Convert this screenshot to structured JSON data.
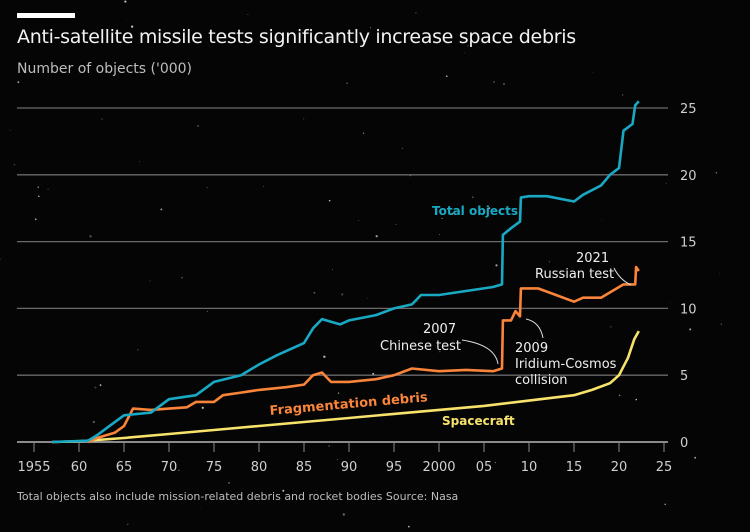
{
  "title": "Anti-satellite missile tests significantly increase space debris",
  "subtitle": "Number of objects ('000)",
  "footer": "Total objects also include mission-related debris and rocket bodies  Source: Nasa",
  "colors": {
    "total": "#19a9c4",
    "fragmentation": "#f9843a",
    "spacecraft": "#f7e36b",
    "grid": "#6a6a6a",
    "background": "#050505"
  },
  "chart_data": {
    "type": "line",
    "title": "Anti-satellite missile tests significantly increase space debris",
    "ylabel": "Number of objects ('000)",
    "xlim": [
      1954,
      2026
    ],
    "ylim": [
      0,
      25
    ],
    "grid": true,
    "x_ticks": [
      1955,
      1960,
      1965,
      1970,
      1975,
      1980,
      1985,
      1990,
      1995,
      2000,
      2005,
      2010,
      2015,
      2020,
      2025
    ],
    "x_tick_labels": [
      "1955",
      "60",
      "65",
      "70",
      "75",
      "80",
      "85",
      "90",
      "95",
      "2000",
      "05",
      "10",
      "15",
      "20",
      "25"
    ],
    "y_ticks": [
      0,
      5,
      10,
      15,
      20,
      25
    ],
    "y_tick_labels": [
      "0",
      "5",
      "10",
      "15",
      "20",
      "25"
    ],
    "series": [
      {
        "name": "Total objects",
        "color": "#19a9c4",
        "x": [
          1957,
          1961,
          1962,
          1963,
          1965,
          1968,
          1970,
          1973,
          1975,
          1978,
          1980,
          1982,
          1985,
          1986,
          1987,
          1989,
          1990,
          1993,
          1995,
          1997,
          1998,
          2000,
          2003,
          2006,
          2007,
          2007.1,
          2008,
          2009,
          2009.1,
          2010,
          2012,
          2015,
          2016,
          2018,
          2019,
          2020,
          2020.5,
          2021.5,
          2021.8,
          2022.2
        ],
        "y": [
          0,
          0.1,
          0.5,
          1.0,
          2.0,
          2.2,
          3.2,
          3.5,
          4.5,
          5.0,
          5.8,
          6.5,
          7.4,
          8.5,
          9.2,
          8.8,
          9.1,
          9.5,
          10.0,
          10.3,
          11.0,
          11.0,
          11.3,
          11.6,
          11.8,
          15.5,
          16.0,
          16.5,
          18.3,
          18.4,
          18.4,
          18.0,
          18.5,
          19.2,
          20.0,
          20.5,
          23.3,
          23.8,
          25.2,
          25.5
        ]
      },
      {
        "name": "Fragmentation debris",
        "color": "#f9843a",
        "x": [
          1961,
          1962,
          1964,
          1965,
          1966,
          1968,
          1970,
          1972,
          1973,
          1975,
          1976,
          1978,
          1980,
          1983,
          1985,
          1986,
          1987,
          1988,
          1990,
          1993,
          1995,
          1997,
          2000,
          2003,
          2006,
          2007,
          2007.1,
          2008,
          2008.5,
          2009,
          2009.1,
          2011,
          2013,
          2015,
          2016,
          2018,
          2019,
          2020.5,
          2021.8,
          2021.9,
          2022.2
        ],
        "y": [
          0,
          0.3,
          0.7,
          1.2,
          2.5,
          2.4,
          2.5,
          2.6,
          3.0,
          3.0,
          3.5,
          3.7,
          3.9,
          4.1,
          4.3,
          5.0,
          5.2,
          4.5,
          4.5,
          4.7,
          5.0,
          5.5,
          5.3,
          5.4,
          5.3,
          5.5,
          9.1,
          9.1,
          9.8,
          9.4,
          11.5,
          11.5,
          11.0,
          10.5,
          10.8,
          10.8,
          11.2,
          11.8,
          11.8,
          13.1,
          12.8
        ]
      },
      {
        "name": "Spacecraft",
        "color": "#f7e36b",
        "x": [
          1957,
          1960,
          1965,
          1970,
          1975,
          1980,
          1985,
          1990,
          1995,
          2000,
          2005,
          2010,
          2015,
          2017,
          2019,
          2020,
          2021,
          2021.7,
          2022.2
        ],
        "y": [
          0,
          0.05,
          0.3,
          0.6,
          0.9,
          1.2,
          1.5,
          1.8,
          2.1,
          2.4,
          2.7,
          3.1,
          3.5,
          3.9,
          4.4,
          5.0,
          6.3,
          7.7,
          8.3
        ]
      }
    ],
    "annotations": [
      {
        "year": "2007",
        "text": "Chinese test"
      },
      {
        "year": "2009",
        "text": "Iridium-Cosmos",
        "text2": "collision"
      },
      {
        "year": "2021",
        "text": "Russian test"
      }
    ]
  }
}
